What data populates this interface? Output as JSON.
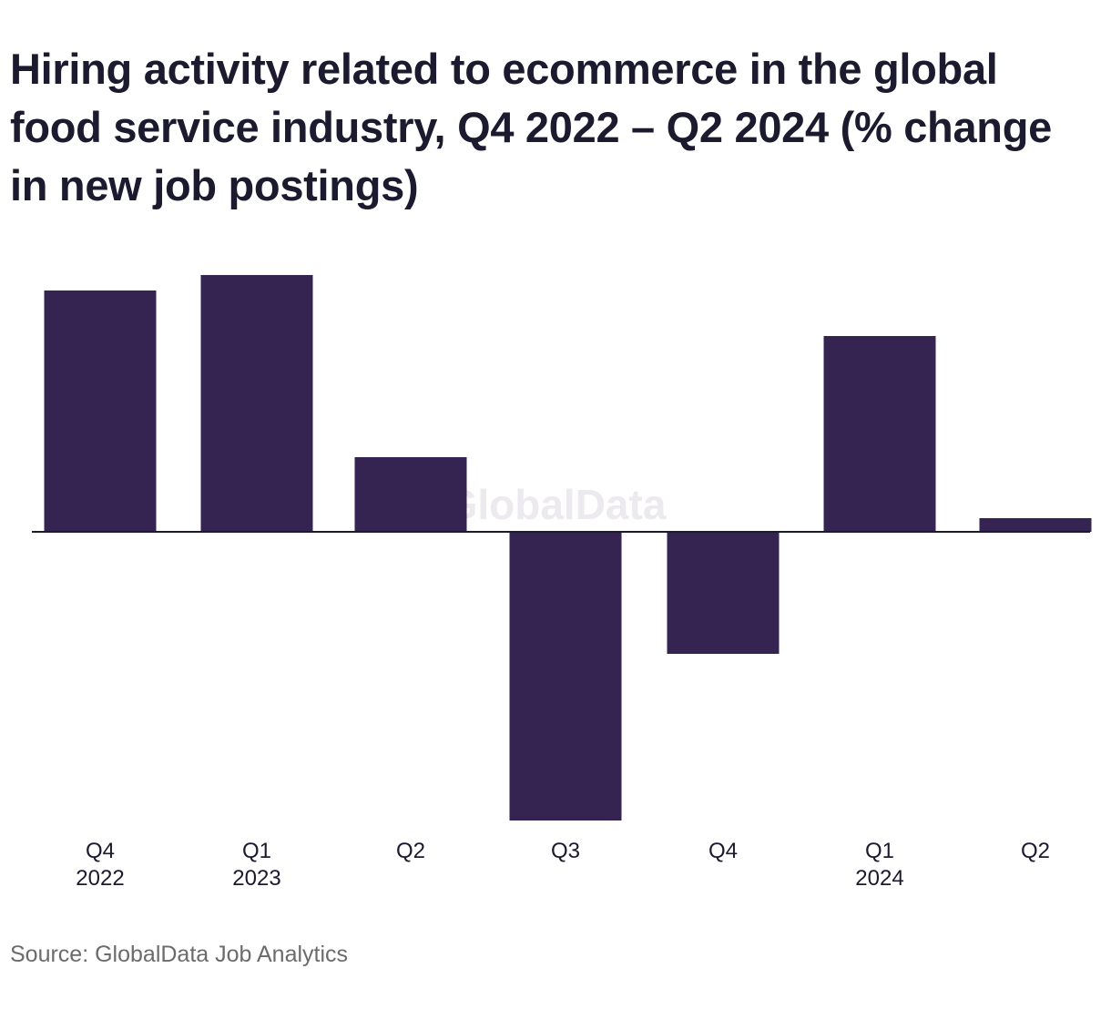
{
  "title": "Hiring activity related to ecommerce in the global food service industry, Q4 2022 – Q2 2024 (% change in new job postings)",
  "watermark": "GlobalData",
  "source": "Source: GlobalData Job Analytics",
  "colors": {
    "bar": "#352452",
    "axis": "#1b1a2e",
    "text": "#1b1a2e",
    "source": "#6b6b6b",
    "watermark": "#ece9ef"
  },
  "chart_data": {
    "type": "bar",
    "categories": [
      {
        "line1": "Q4",
        "line2": "2022"
      },
      {
        "line1": "Q1",
        "line2": "2023"
      },
      {
        "line1": "Q2",
        "line2": ""
      },
      {
        "line1": "Q3",
        "line2": ""
      },
      {
        "line1": "Q4",
        "line2": ""
      },
      {
        "line1": "Q1",
        "line2": "2024"
      },
      {
        "line1": "Q2",
        "line2": ""
      }
    ],
    "values": [
      26.5,
      28.2,
      8.2,
      -31.7,
      -13.4,
      21.5,
      1.5
    ],
    "ylim": [
      -32,
      30
    ],
    "y_axis_labels": false,
    "grid": false,
    "legend": "none"
  }
}
